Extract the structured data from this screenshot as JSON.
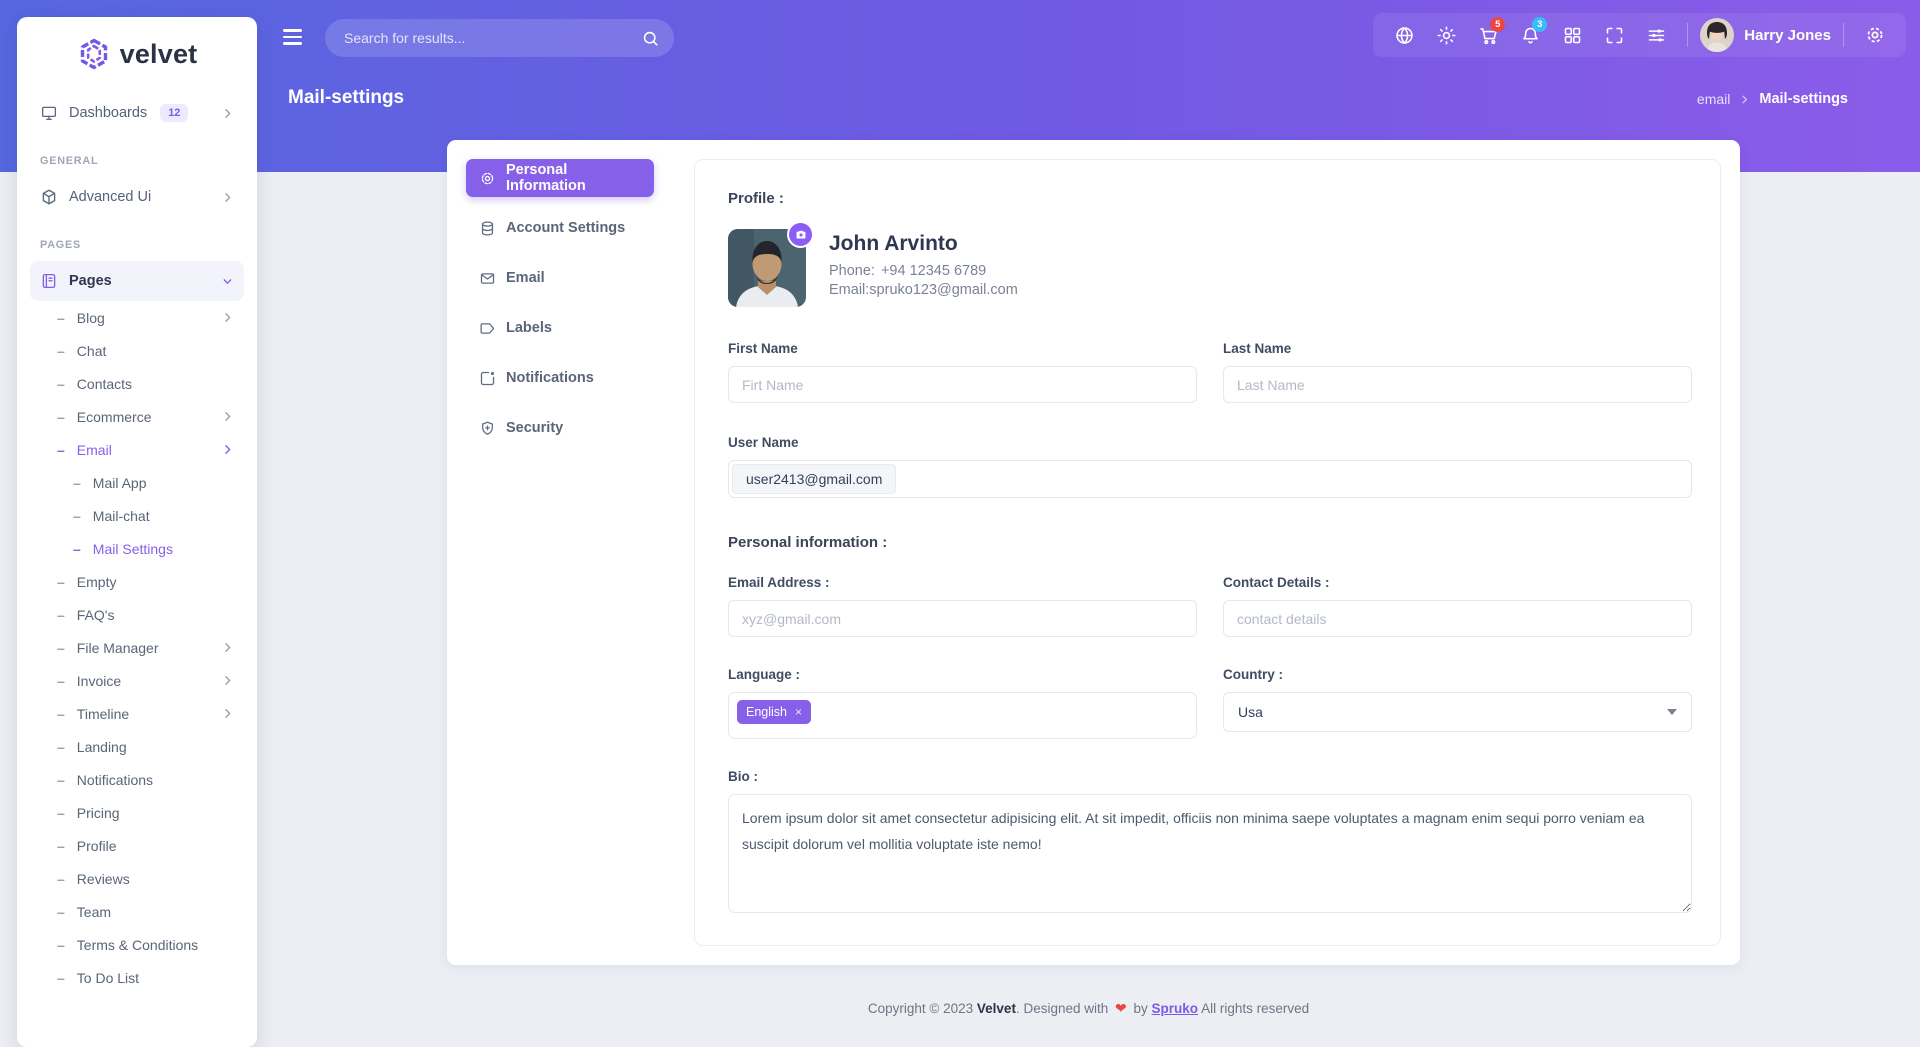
{
  "brand": {
    "name": "velvet"
  },
  "header": {
    "search_placeholder": "Search for results...",
    "icons": [
      {
        "name": "globe"
      },
      {
        "name": "sun"
      },
      {
        "name": "cart",
        "badge": "5",
        "badge_color": "#ef4444"
      },
      {
        "name": "bell",
        "badge": "3",
        "badge_color": "#38bdf8"
      },
      {
        "name": "grid"
      },
      {
        "name": "fullscreen"
      },
      {
        "name": "sliders"
      }
    ],
    "user_name": "Harry Jones"
  },
  "page": {
    "title": "Mail-settings",
    "breadcrumb_parent": "email",
    "breadcrumb_current": "Mail-settings"
  },
  "sidebar": {
    "items": [
      {
        "type": "link",
        "icon": "monitor",
        "label": "Dashboards",
        "badge": "12",
        "arrow": "right"
      },
      {
        "type": "section",
        "label": "GENERAL"
      },
      {
        "type": "link",
        "icon": "box",
        "label": "Advanced Ui",
        "arrow": "right"
      },
      {
        "type": "section",
        "label": "PAGES"
      },
      {
        "type": "link",
        "icon": "book",
        "label": "Pages",
        "arrow": "down",
        "active": true
      },
      {
        "type": "sub",
        "label": "Blog",
        "level": 1,
        "arrow": true
      },
      {
        "type": "sub",
        "label": "Chat",
        "level": 1
      },
      {
        "type": "sub",
        "label": "Contacts",
        "level": 1
      },
      {
        "type": "sub",
        "label": "Ecommerce",
        "level": 1,
        "arrow": true
      },
      {
        "type": "sub",
        "label": "Email",
        "level": 1,
        "arrow": true,
        "active": true
      },
      {
        "type": "sub",
        "label": "Mail App",
        "level": 2
      },
      {
        "type": "sub",
        "label": "Mail-chat",
        "level": 2
      },
      {
        "type": "sub",
        "label": "Mail Settings",
        "level": 2,
        "active": true
      },
      {
        "type": "sub",
        "label": "Empty",
        "level": 1
      },
      {
        "type": "sub",
        "label": "FAQ's",
        "level": 1
      },
      {
        "type": "sub",
        "label": "File Manager",
        "level": 1,
        "arrow": true
      },
      {
        "type": "sub",
        "label": "Invoice",
        "level": 1,
        "arrow": true
      },
      {
        "type": "sub",
        "label": "Timeline",
        "level": 1,
        "arrow": true
      },
      {
        "type": "sub",
        "label": "Landing",
        "level": 1
      },
      {
        "type": "sub",
        "label": "Notifications",
        "level": 1
      },
      {
        "type": "sub",
        "label": "Pricing",
        "level": 1
      },
      {
        "type": "sub",
        "label": "Profile",
        "level": 1
      },
      {
        "type": "sub",
        "label": "Reviews",
        "level": 1
      },
      {
        "type": "sub",
        "label": "Team",
        "level": 1
      },
      {
        "type": "sub",
        "label": "Terms & Conditions",
        "level": 1
      },
      {
        "type": "sub",
        "label": "To Do List",
        "level": 1
      }
    ]
  },
  "settings_nav": [
    {
      "icon": "gear",
      "label": "Personal Information",
      "active": true
    },
    {
      "icon": "database",
      "label": "Account Settings"
    },
    {
      "icon": "envelope",
      "label": "Email"
    },
    {
      "icon": "tag",
      "label": "Labels"
    },
    {
      "icon": "square-dot",
      "label": "Notifications"
    },
    {
      "icon": "shield",
      "label": "Security"
    }
  ],
  "profile": {
    "heading": "Profile :",
    "name": "John Arvinto",
    "phone_label": "Phone:",
    "phone": "+94 12345 6789",
    "email_label": "Email:",
    "email": "spruko123@gmail.com"
  },
  "form": {
    "first_name": {
      "label": "First Name",
      "placeholder": "Firt Name"
    },
    "last_name": {
      "label": "Last Name",
      "placeholder": "Last Name"
    },
    "user_name": {
      "label": "User Name",
      "addon": "user2413@gmail.com",
      "value": ""
    },
    "section_heading": "Personal information :",
    "email_address": {
      "label": "Email Address :",
      "placeholder": "xyz@gmail.com"
    },
    "contact_details": {
      "label": "Contact Details :",
      "placeholder": "contact details"
    },
    "language": {
      "label": "Language :",
      "tag": "English",
      "tag_remove": "×"
    },
    "country": {
      "label": "Country :",
      "value": "Usa"
    },
    "bio": {
      "label": "Bio :",
      "value": "Lorem ipsum dolor sit amet consectetur adipisicing elit. At sit impedit, officiis non minima saepe voluptates a magnam enim sequi porro veniam ea suscipit dolorum vel mollitia voluptate iste nemo!"
    }
  },
  "footer": {
    "prefix": "Copyright © 2023",
    "brand": "Velvet",
    "middle": ". Designed with",
    "by": "by",
    "agency": "Spruko",
    "suffix": "All rights reserved"
  },
  "colors": {
    "accent": "#8760e9",
    "banner_start": "#5667e0",
    "banner_end": "#8b5ce9",
    "cart_badge": "#ef4444",
    "bell_badge": "#38bdf8",
    "heart": "#e8483f"
  }
}
